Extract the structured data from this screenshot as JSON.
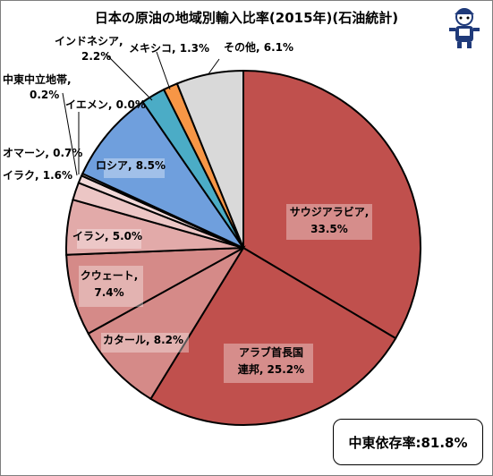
{
  "chart_data": {
    "type": "pie",
    "title": "日本の原油の地域別輸入比率(2015年)(石油統計)",
    "slices": [
      {
        "label": "サウジアラビア",
        "value": 33.5,
        "text": "33.5%",
        "color": "#c0504d"
      },
      {
        "label": "アラブ首長国連邦",
        "value": 25.2,
        "text": "25.2%",
        "color": "#c0504d"
      },
      {
        "label": "カタール",
        "value": 8.2,
        "text": "8.2%",
        "color": "#d58a88"
      },
      {
        "label": "クウェート",
        "value": 7.4,
        "text": "7.4%",
        "color": "#d58a88"
      },
      {
        "label": "イラン",
        "value": 5.0,
        "text": "5.0%",
        "color": "#e2aaa9"
      },
      {
        "label": "イラク",
        "value": 1.6,
        "text": "1.6%",
        "color": "#ecc6c5"
      },
      {
        "label": "オマーン",
        "value": 0.7,
        "text": "0.7%",
        "color": "#f2d9d8"
      },
      {
        "label": "イエメン",
        "value": 0.0,
        "text": "0.0%",
        "color": "#f2d9d8"
      },
      {
        "label": "中東中立地帯",
        "value": 0.2,
        "text": "0.2%",
        "color": "#f5e2e1"
      },
      {
        "label": "ロシア",
        "value": 8.5,
        "text": "8.5%",
        "color": "#6f9fdd"
      },
      {
        "label": "インドネシア",
        "value": 2.2,
        "text": "2.2%",
        "color": "#4bacc6"
      },
      {
        "label": "メキシコ",
        "value": 1.3,
        "text": "1.3%",
        "color": "#f79646"
      },
      {
        "label": "その他",
        "value": 6.1,
        "text": "6.1%",
        "color": "#d9d9d9"
      }
    ],
    "callout": "中東依存率:81.8%",
    "start_angle": "12 o'clock",
    "direction": "clockwise"
  }
}
